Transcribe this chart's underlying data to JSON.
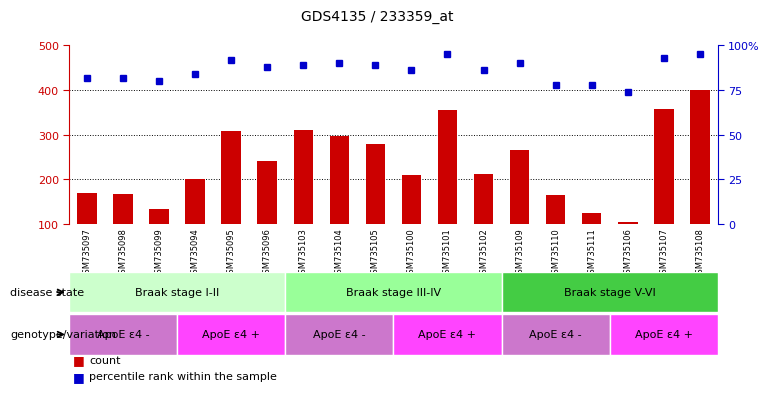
{
  "title": "GDS4135 / 233359_at",
  "samples": [
    "GSM735097",
    "GSM735098",
    "GSM735099",
    "GSM735094",
    "GSM735095",
    "GSM735096",
    "GSM735103",
    "GSM735104",
    "GSM735105",
    "GSM735100",
    "GSM735101",
    "GSM735102",
    "GSM735109",
    "GSM735110",
    "GSM735111",
    "GSM735106",
    "GSM735107",
    "GSM735108"
  ],
  "counts": [
    170,
    168,
    133,
    202,
    308,
    242,
    310,
    298,
    280,
    210,
    355,
    213,
    265,
    165,
    124,
    104,
    357,
    400
  ],
  "percentile_pct": [
    82,
    82,
    80,
    84,
    92,
    88,
    89,
    90,
    89,
    86,
    95,
    86,
    90,
    78,
    78,
    74,
    93,
    95
  ],
  "ylim_left": [
    100,
    500
  ],
  "ylim_right": [
    0,
    100
  ],
  "right_ticks": [
    0,
    25,
    50,
    75,
    100
  ],
  "right_tick_labels": [
    "0",
    "25",
    "50",
    "75",
    "100%"
  ],
  "left_ticks": [
    100,
    200,
    300,
    400,
    500
  ],
  "bar_color": "#cc0000",
  "dot_color": "#0000cc",
  "disease_state_groups": [
    {
      "label": "Braak stage I-II",
      "start": 0,
      "end": 5,
      "color": "#ccffcc"
    },
    {
      "label": "Braak stage III-IV",
      "start": 6,
      "end": 11,
      "color": "#99ff99"
    },
    {
      "label": "Braak stage V-VI",
      "start": 12,
      "end": 17,
      "color": "#44cc44"
    }
  ],
  "genotype_groups": [
    {
      "label": "ApoE ε4 -",
      "start": 0,
      "end": 2,
      "color": "#cc77cc"
    },
    {
      "label": "ApoE ε4 +",
      "start": 3,
      "end": 5,
      "color": "#ff44ff"
    },
    {
      "label": "ApoE ε4 -",
      "start": 6,
      "end": 8,
      "color": "#cc77cc"
    },
    {
      "label": "ApoE ε4 +",
      "start": 9,
      "end": 11,
      "color": "#ff44ff"
    },
    {
      "label": "ApoE ε4 -",
      "start": 12,
      "end": 14,
      "color": "#cc77cc"
    },
    {
      "label": "ApoE ε4 +",
      "start": 15,
      "end": 17,
      "color": "#ff44ff"
    }
  ],
  "grid_values": [
    200,
    300,
    400
  ],
  "bar_width": 0.55,
  "legend_count_label": "count",
  "legend_pct_label": "percentile rank within the sample",
  "disease_row_label": "disease state",
  "genotype_row_label": "genotype/variation",
  "bg_color": "#ffffff",
  "tick_area_bg": "#cccccc"
}
